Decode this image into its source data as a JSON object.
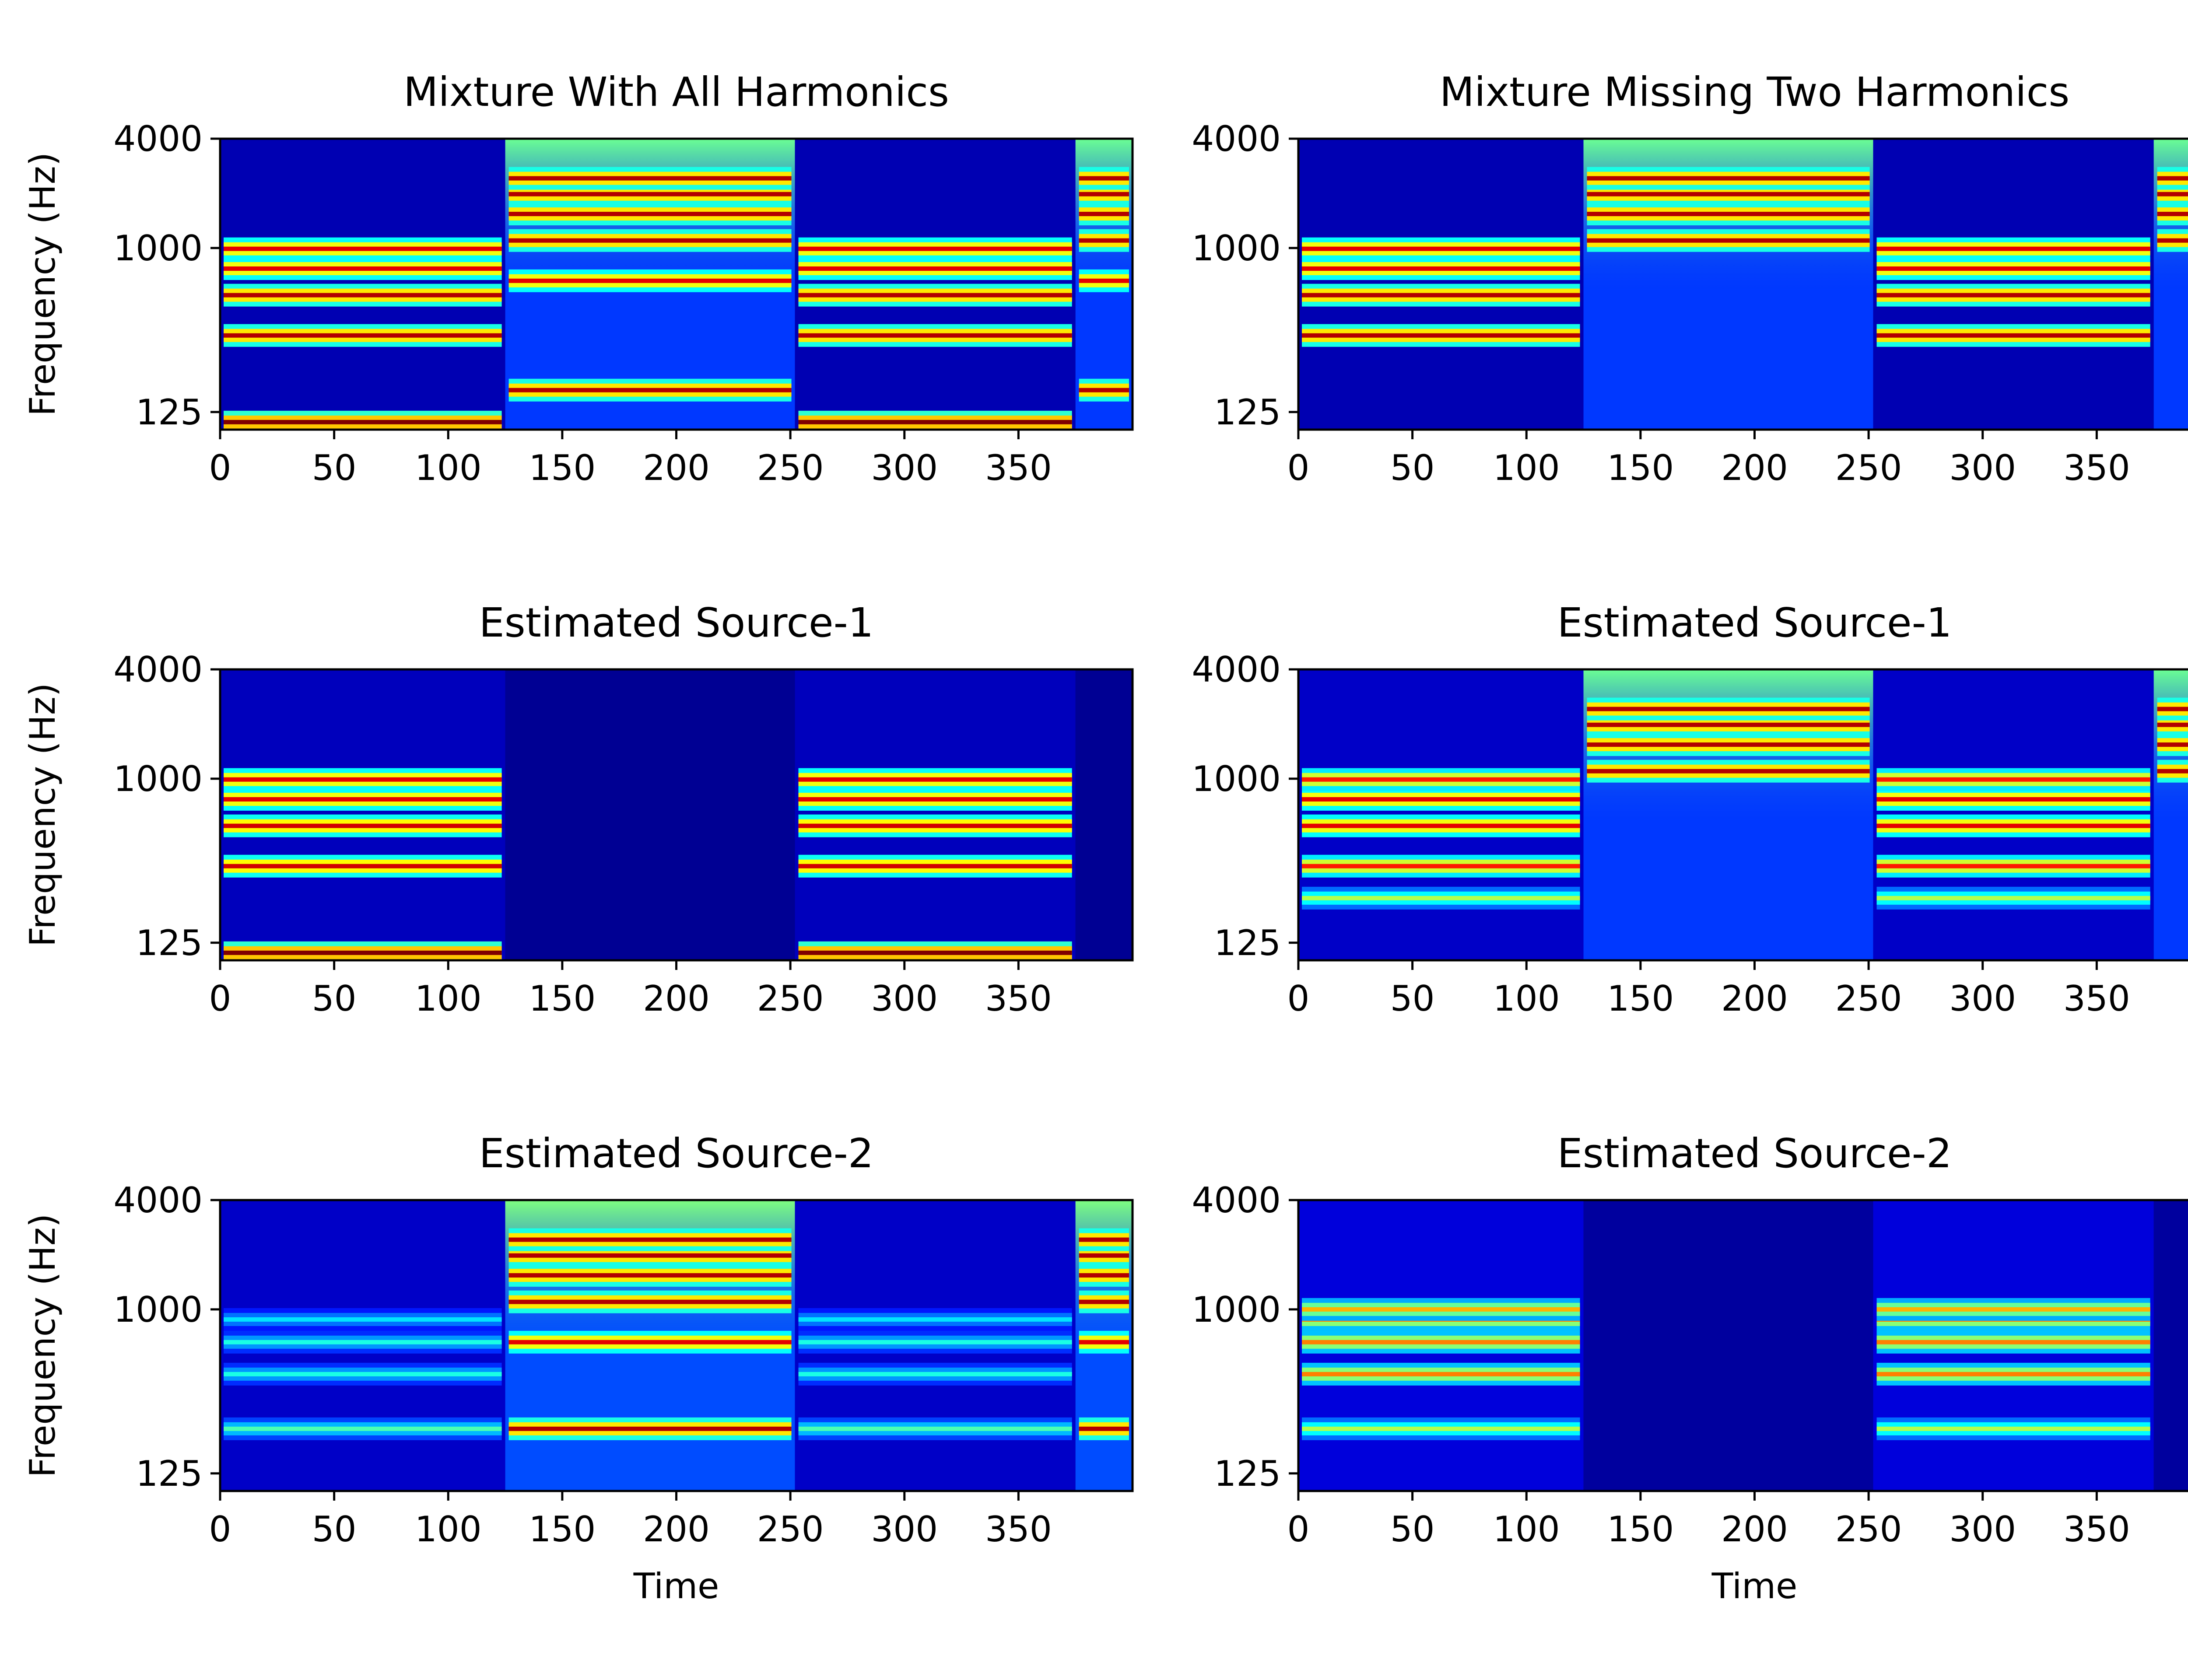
{
  "figure": {
    "colormap": [
      "#00007f",
      "#0000ff",
      "#007fff",
      "#00ffff",
      "#7fff7f",
      "#ffff00",
      "#ff7f00",
      "#ff0000",
      "#7f0000"
    ],
    "axis_color": "#000000"
  },
  "chart_data": [
    {
      "type": "heatmap",
      "title": "Mixture With All Harmonics",
      "xlabel": "",
      "ylabel": "Frequency (Hz)",
      "xlim": [
        0,
        400
      ],
      "ylim_hz": [
        100,
        4000
      ],
      "y_scale": "log2",
      "xticks": [
        "0",
        "50",
        "100",
        "150",
        "200",
        "250",
        "300",
        "350"
      ],
      "yticks": [
        "4000",
        "1000",
        "125"
      ],
      "segments": [
        {
          "t0": 0,
          "t1": 125,
          "bg": 0.05,
          "top_glow": 0.0,
          "harmonics_hz": [
            110,
            330,
            550,
            770,
            990
          ],
          "intensity": [
            1.0,
            0.95,
            0.95,
            0.9,
            0.9
          ]
        },
        {
          "t0": 125,
          "t1": 252,
          "bg": 0.18,
          "top_glow": 0.3,
          "harmonics_hz": [
            165,
            660,
            1100,
            1540,
            1980,
            2420
          ],
          "intensity": [
            0.95,
            0.9,
            0.95,
            0.95,
            0.95,
            0.95
          ]
        },
        {
          "t0": 252,
          "t1": 375,
          "bg": 0.05,
          "top_glow": 0.0,
          "harmonics_hz": [
            110,
            330,
            550,
            770,
            990
          ],
          "intensity": [
            1.0,
            0.95,
            0.95,
            0.9,
            0.9
          ]
        },
        {
          "t0": 375,
          "t1": 400,
          "bg": 0.18,
          "top_glow": 0.3,
          "harmonics_hz": [
            165,
            660,
            1100,
            1540,
            1980,
            2420
          ],
          "intensity": [
            0.95,
            0.9,
            0.95,
            0.95,
            0.95,
            0.95
          ]
        }
      ]
    },
    {
      "type": "heatmap",
      "title": "Mixture Missing Two Harmonics",
      "xlabel": "",
      "ylabel": "",
      "xlim": [
        0,
        400
      ],
      "ylim_hz": [
        100,
        4000
      ],
      "y_scale": "log2",
      "xticks": [
        "0",
        "50",
        "100",
        "150",
        "200",
        "250",
        "300",
        "350"
      ],
      "yticks": [
        "4000",
        "1000",
        "125"
      ],
      "segments": [
        {
          "t0": 0,
          "t1": 125,
          "bg": 0.05,
          "top_glow": 0.0,
          "harmonics_hz": [
            330,
            550,
            770,
            990
          ],
          "intensity": [
            0.95,
            0.95,
            0.9,
            0.9
          ]
        },
        {
          "t0": 125,
          "t1": 252,
          "bg": 0.18,
          "top_glow": 0.3,
          "harmonics_hz": [
            1100,
            1540,
            1980,
            2420
          ],
          "intensity": [
            0.95,
            0.95,
            0.95,
            0.95
          ]
        },
        {
          "t0": 252,
          "t1": 375,
          "bg": 0.05,
          "top_glow": 0.0,
          "harmonics_hz": [
            330,
            550,
            770,
            990
          ],
          "intensity": [
            0.95,
            0.95,
            0.9,
            0.9
          ]
        },
        {
          "t0": 375,
          "t1": 400,
          "bg": 0.18,
          "top_glow": 0.3,
          "harmonics_hz": [
            1100,
            1540,
            1980,
            2420
          ],
          "intensity": [
            0.95,
            0.95,
            0.95,
            0.95
          ]
        }
      ]
    },
    {
      "type": "heatmap",
      "title": "Estimated Source-1",
      "xlabel": "",
      "ylabel": "Frequency (Hz)",
      "xlim": [
        0,
        400
      ],
      "ylim_hz": [
        100,
        4000
      ],
      "y_scale": "log2",
      "xticks": [
        "0",
        "50",
        "100",
        "150",
        "200",
        "250",
        "300",
        "350"
      ],
      "yticks": [
        "4000",
        "1000",
        "125"
      ],
      "segments": [
        {
          "t0": 0,
          "t1": 125,
          "bg": 0.06,
          "top_glow": 0.0,
          "harmonics_hz": [
            110,
            330,
            550,
            770,
            990
          ],
          "intensity": [
            1.0,
            0.92,
            0.92,
            0.9,
            0.9
          ]
        },
        {
          "t0": 125,
          "t1": 252,
          "bg": 0.02,
          "top_glow": 0.0,
          "harmonics_hz": [],
          "intensity": []
        },
        {
          "t0": 252,
          "t1": 375,
          "bg": 0.06,
          "top_glow": 0.0,
          "harmonics_hz": [
            110,
            330,
            550,
            770,
            990
          ],
          "intensity": [
            1.0,
            0.92,
            0.92,
            0.9,
            0.9
          ]
        },
        {
          "t0": 375,
          "t1": 400,
          "bg": 0.02,
          "top_glow": 0.0,
          "harmonics_hz": [],
          "intensity": []
        }
      ]
    },
    {
      "type": "heatmap",
      "title": "Estimated Source-1",
      "xlabel": "",
      "ylabel": "",
      "xlim": [
        0,
        400
      ],
      "ylim_hz": [
        100,
        4000
      ],
      "y_scale": "log2",
      "xticks": [
        "0",
        "50",
        "100",
        "150",
        "200",
        "250",
        "300",
        "350"
      ],
      "yticks": [
        "4000",
        "1000",
        "125"
      ],
      "segments": [
        {
          "t0": 0,
          "t1": 125,
          "bg": 0.07,
          "top_glow": 0.0,
          "harmonics_hz": [
            220,
            330,
            550,
            770,
            990
          ],
          "intensity": [
            0.55,
            0.85,
            0.9,
            0.9,
            0.85
          ]
        },
        {
          "t0": 125,
          "t1": 252,
          "bg": 0.18,
          "top_glow": 0.3,
          "harmonics_hz": [
            1100,
            1540,
            1980,
            2420
          ],
          "intensity": [
            0.95,
            0.95,
            0.95,
            0.95
          ]
        },
        {
          "t0": 252,
          "t1": 375,
          "bg": 0.07,
          "top_glow": 0.0,
          "harmonics_hz": [
            220,
            330,
            550,
            770,
            990
          ],
          "intensity": [
            0.55,
            0.85,
            0.9,
            0.9,
            0.85
          ]
        },
        {
          "t0": 375,
          "t1": 400,
          "bg": 0.18,
          "top_glow": 0.3,
          "harmonics_hz": [
            1100,
            1540,
            1980,
            2420
          ],
          "intensity": [
            0.95,
            0.95,
            0.95,
            0.95
          ]
        }
      ]
    },
    {
      "type": "heatmap",
      "title": "Estimated Source-2",
      "xlabel": "Time",
      "ylabel": "Frequency (Hz)",
      "xlim": [
        0,
        400
      ],
      "ylim_hz": [
        100,
        4000
      ],
      "y_scale": "log2",
      "xticks": [
        "0",
        "50",
        "100",
        "150",
        "200",
        "250",
        "300",
        "350"
      ],
      "yticks": [
        "4000",
        "1000",
        "125"
      ],
      "segments": [
        {
          "t0": 0,
          "t1": 125,
          "bg": 0.07,
          "top_glow": 0.0,
          "harmonics_hz": [
            220,
            440,
            660,
            880
          ],
          "intensity": [
            0.45,
            0.4,
            0.4,
            0.35
          ]
        },
        {
          "t0": 125,
          "t1": 252,
          "bg": 0.2,
          "top_glow": 0.3,
          "harmonics_hz": [
            220,
            660,
            1100,
            1540,
            1980,
            2420
          ],
          "intensity": [
            0.95,
            0.9,
            0.95,
            0.95,
            0.95,
            0.95
          ]
        },
        {
          "t0": 252,
          "t1": 375,
          "bg": 0.07,
          "top_glow": 0.0,
          "harmonics_hz": [
            220,
            440,
            660,
            880
          ],
          "intensity": [
            0.45,
            0.4,
            0.4,
            0.35
          ]
        },
        {
          "t0": 375,
          "t1": 400,
          "bg": 0.2,
          "top_glow": 0.3,
          "harmonics_hz": [
            220,
            660,
            1100,
            1540,
            1980,
            2420
          ],
          "intensity": [
            0.95,
            0.9,
            0.95,
            0.95,
            0.95,
            0.95
          ]
        }
      ]
    },
    {
      "type": "heatmap",
      "title": "Estimated Source-2",
      "xlabel": "Time",
      "ylabel": "",
      "xlim": [
        0,
        400
      ],
      "ylim_hz": [
        100,
        4000
      ],
      "y_scale": "log2",
      "xticks": [
        "0",
        "50",
        "100",
        "150",
        "200",
        "250",
        "300",
        "350"
      ],
      "yticks": [
        "4000",
        "1000",
        "125"
      ],
      "segments": [
        {
          "t0": 0,
          "t1": 125,
          "bg": 0.09,
          "top_glow": 0.0,
          "harmonics_hz": [
            220,
            440,
            660,
            880,
            1000
          ],
          "intensity": [
            0.55,
            0.75,
            0.75,
            0.75,
            0.7
          ]
        },
        {
          "t0": 125,
          "t1": 252,
          "bg": 0.03,
          "top_glow": 0.0,
          "harmonics_hz": [],
          "intensity": []
        },
        {
          "t0": 252,
          "t1": 375,
          "bg": 0.09,
          "top_glow": 0.0,
          "harmonics_hz": [
            220,
            440,
            660,
            880,
            1000
          ],
          "intensity": [
            0.55,
            0.75,
            0.75,
            0.75,
            0.7
          ]
        },
        {
          "t0": 375,
          "t1": 400,
          "bg": 0.03,
          "top_glow": 0.0,
          "harmonics_hz": [],
          "intensity": []
        }
      ]
    }
  ]
}
